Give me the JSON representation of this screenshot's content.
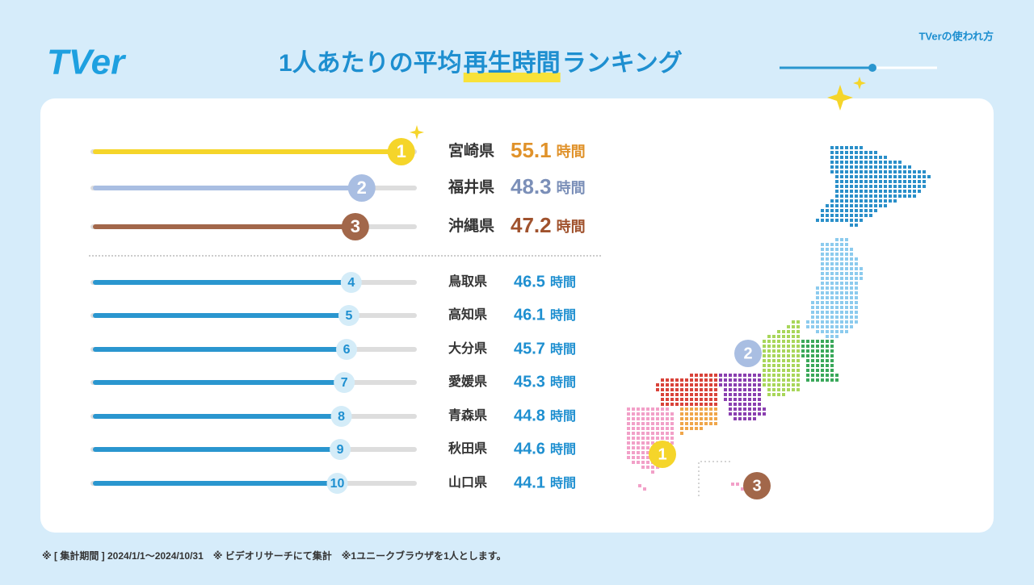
{
  "header": {
    "logo": "TVer",
    "corner_label": "TVerの使われ方",
    "title_before": "1人あたりの平均",
    "title_highlight": "再生時間",
    "title_after": "ランキング"
  },
  "chart_data": {
    "type": "bar",
    "categories": [
      "宮崎県",
      "福井県",
      "沖縄県",
      "鳥取県",
      "高知県",
      "大分県",
      "愛媛県",
      "青森県",
      "秋田県",
      "山口県"
    ],
    "values": [
      55.1,
      48.3,
      47.2,
      46.5,
      46.1,
      45.7,
      45.3,
      44.8,
      44.6,
      44.1
    ],
    "ranks": [
      1,
      2,
      3,
      4,
      5,
      6,
      7,
      8,
      9,
      10
    ],
    "unit": "時間",
    "colors": [
      "#f5d52a",
      "#a9bee2",
      "#a2674a",
      "#2a96cf",
      "#2a96cf",
      "#2a96cf",
      "#2a96cf",
      "#2a96cf",
      "#2a96cf",
      "#2a96cf"
    ],
    "value_colors": [
      "#e0922a",
      "#7b8fb8",
      "#a0522d",
      "#1e8fd0",
      "#1e8fd0",
      "#1e8fd0",
      "#1e8fd0",
      "#1e8fd0",
      "#1e8fd0",
      "#1e8fd0"
    ]
  },
  "footnote": "※ [ 集計期間 ] 2024/1/1～2024/10/31　※ ビデオリサーチにて集計　※1ユニークブラウザを1人とします。"
}
